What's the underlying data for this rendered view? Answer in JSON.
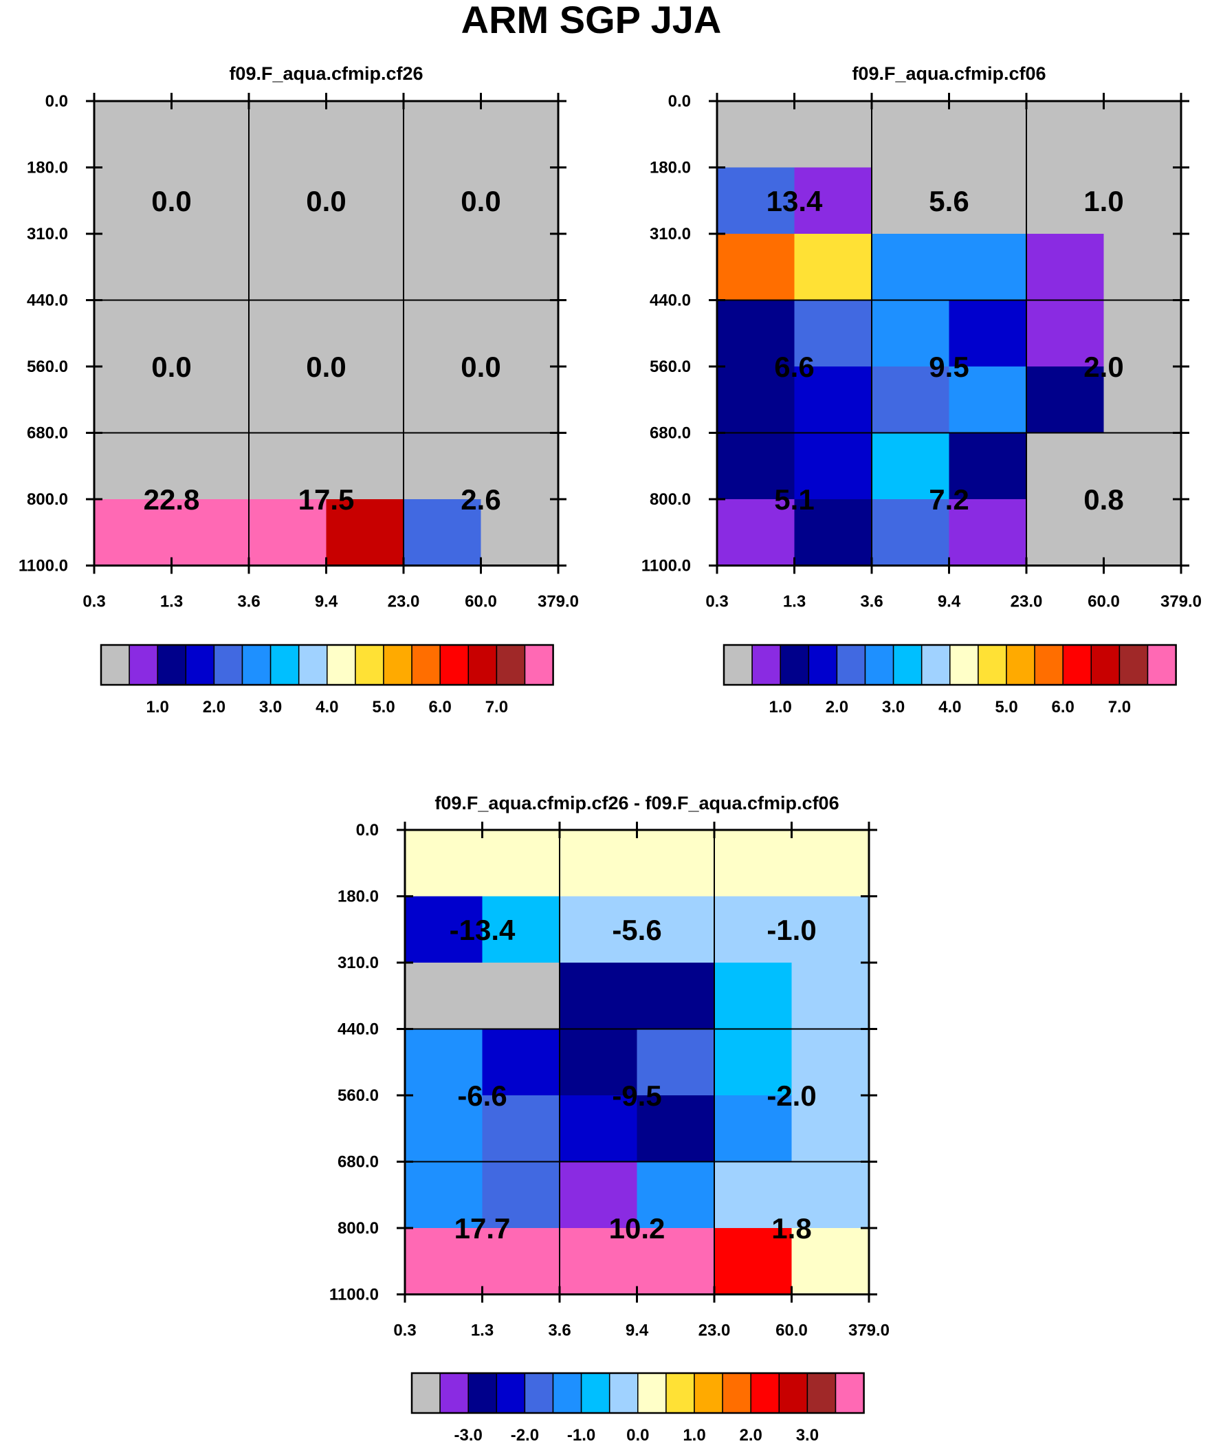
{
  "title": "ARM SGP JJA",
  "palette": [
    "#c0c0c0",
    "#8a2be2",
    "#00008b",
    "#0000cd",
    "#4169e1",
    "#1e90ff",
    "#00bfff",
    "#a0d2ff",
    "#ffffc8",
    "#ffe135",
    "#ffaa00",
    "#ff6e00",
    "#ff0000",
    "#c80000",
    "#a02828",
    "#ff69b4"
  ],
  "chart_data": [
    {
      "type": "heatmap",
      "title": "f09.F_aqua.cfmip.cf26",
      "y_ticks": [
        "0.0",
        "180.0",
        "310.0",
        "440.0",
        "560.0",
        "680.0",
        "800.0",
        "1100.0"
      ],
      "x_ticks": [
        "0.3",
        "1.3",
        "3.6",
        "9.4",
        "23.0",
        "60.0",
        "379.0"
      ],
      "cell_colors": [
        [
          0,
          0,
          0,
          0,
          0,
          0
        ],
        [
          0,
          0,
          0,
          0,
          0,
          0
        ],
        [
          0,
          0,
          0,
          0,
          0,
          0
        ],
        [
          0,
          0,
          0,
          0,
          0,
          0
        ],
        [
          0,
          0,
          0,
          0,
          0,
          0
        ],
        [
          0,
          0,
          0,
          0,
          0,
          0
        ],
        [
          15,
          15,
          15,
          13,
          4,
          0
        ]
      ],
      "block_values": [
        [
          "0.0",
          "0.0",
          "0.0"
        ],
        [
          "0.0",
          "0.0",
          "0.0"
        ],
        [
          "22.8",
          "17.5",
          "2.6"
        ]
      ],
      "colorbar_labels": [
        "1.0",
        "2.0",
        "3.0",
        "4.0",
        "5.0",
        "6.0",
        "7.0"
      ]
    },
    {
      "type": "heatmap",
      "title": "f09.F_aqua.cfmip.cf06",
      "y_ticks": [
        "0.0",
        "180.0",
        "310.0",
        "440.0",
        "560.0",
        "680.0",
        "800.0",
        "1100.0"
      ],
      "x_ticks": [
        "0.3",
        "1.3",
        "3.6",
        "9.4",
        "23.0",
        "60.0",
        "379.0"
      ],
      "cell_colors": [
        [
          0,
          0,
          0,
          0,
          0,
          0
        ],
        [
          4,
          1,
          0,
          0,
          0,
          0
        ],
        [
          11,
          9,
          5,
          5,
          1,
          0
        ],
        [
          2,
          4,
          5,
          3,
          1,
          0
        ],
        [
          2,
          3,
          4,
          5,
          2,
          0
        ],
        [
          2,
          3,
          6,
          2,
          0,
          0
        ],
        [
          1,
          2,
          4,
          1,
          0,
          0
        ]
      ],
      "block_values": [
        [
          "13.4",
          "5.6",
          "1.0"
        ],
        [
          "6.6",
          "9.5",
          "2.0"
        ],
        [
          "5.1",
          "7.2",
          "0.8"
        ]
      ],
      "colorbar_labels": [
        "1.0",
        "2.0",
        "3.0",
        "4.0",
        "5.0",
        "6.0",
        "7.0"
      ]
    },
    {
      "type": "heatmap",
      "title": "f09.F_aqua.cfmip.cf26 - f09.F_aqua.cfmip.cf06",
      "y_ticks": [
        "0.0",
        "180.0",
        "310.0",
        "440.0",
        "560.0",
        "680.0",
        "800.0",
        "1100.0"
      ],
      "x_ticks": [
        "0.3",
        "1.3",
        "3.6",
        "9.4",
        "23.0",
        "60.0",
        "379.0"
      ],
      "cell_colors": [
        [
          8,
          8,
          8,
          8,
          8,
          8
        ],
        [
          3,
          6,
          7,
          7,
          7,
          7
        ],
        [
          0,
          0,
          2,
          2,
          6,
          7
        ],
        [
          5,
          3,
          2,
          4,
          6,
          7
        ],
        [
          5,
          4,
          3,
          2,
          5,
          7
        ],
        [
          5,
          4,
          1,
          5,
          7,
          7
        ],
        [
          15,
          15,
          15,
          15,
          12,
          8
        ]
      ],
      "block_values": [
        [
          "-13.4",
          "-5.6",
          "-1.0"
        ],
        [
          "-6.6",
          "-9.5",
          "-2.0"
        ],
        [
          "17.7",
          "10.2",
          "1.8"
        ]
      ],
      "colorbar_labels": [
        "-3.0",
        "-2.0",
        "-1.0",
        "0.0",
        "1.0",
        "2.0",
        "3.0"
      ]
    }
  ]
}
